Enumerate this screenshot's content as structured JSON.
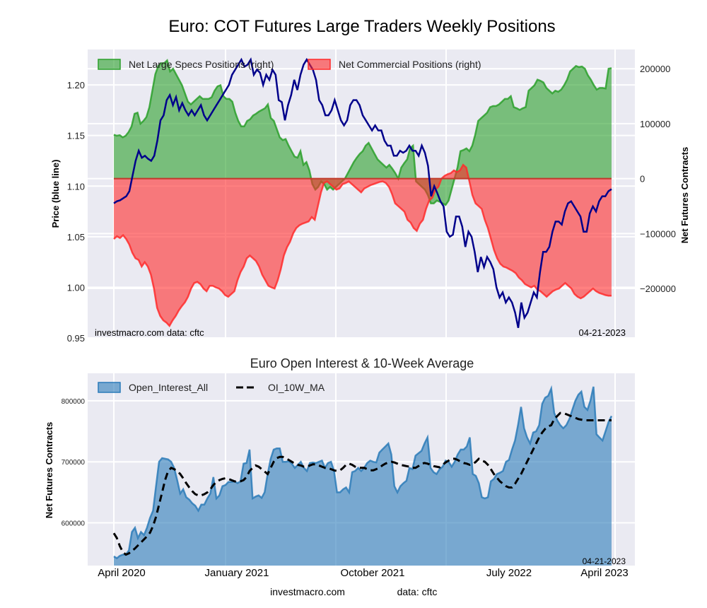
{
  "chart_data": [
    {
      "type": "area",
      "title": "Euro: COT Futures Large Traders Weekly Positions",
      "ylabel_left": "Price (blue line)",
      "ylabel_right": "Net Futures Contracts",
      "ylim_left": [
        0.95,
        1.235
      ],
      "ylim_right": [
        -290000,
        235000
      ],
      "yticks_left": [
        "0.95",
        "1.00",
        "1.05",
        "1.10",
        "1.15",
        "1.20"
      ],
      "yticks_left_values": [
        0.95,
        1.0,
        1.05,
        1.1,
        1.15,
        1.2
      ],
      "yticks_right": [
        "200000",
        "100000",
        "0",
        "−100000",
        "−200000"
      ],
      "yticks_right_values": [
        200000,
        100000,
        0,
        -100000,
        -200000
      ],
      "grid": true,
      "legend_position": "top-left",
      "annotations": {
        "left": "investmacro.com    data: cftc",
        "right": "04-21-2023"
      },
      "series": [
        {
          "name": "Net Large Specs Positions (right)",
          "kind": "area",
          "color": "#2ca02c",
          "values": [
            80000,
            78000,
            79000,
            75000,
            78000,
            85000,
            95000,
            118000,
            120000,
            100000,
            105000,
            112000,
            130000,
            160000,
            190000,
            205000,
            210000,
            210000,
            215000,
            195000,
            200000,
            190000,
            180000,
            170000,
            155000,
            140000,
            135000,
            140000,
            145000,
            150000,
            145000,
            145000,
            145000,
            148000,
            160000,
            168000,
            170000,
            150000,
            145000,
            145000,
            140000,
            120000,
            105000,
            95000,
            95000,
            105000,
            108000,
            115000,
            118000,
            122000,
            125000,
            128000,
            135000,
            110000,
            105000,
            90000,
            75000,
            70000,
            72000,
            60000,
            50000,
            40000,
            38000,
            50000,
            25000,
            30000,
            15000,
            -10000,
            -20000,
            -15000,
            -5000,
            -10000,
            -20000,
            -15000,
            -20000,
            -15000,
            -10000,
            -5000,
            0,
            10000,
            20000,
            30000,
            38000,
            45000,
            50000,
            60000,
            65000,
            55000,
            45000,
            35000,
            30000,
            25000,
            20000,
            25000,
            18000,
            10000,
            0,
            20000,
            28000,
            35000,
            55000,
            60000,
            -5000,
            -10000,
            -15000,
            -20000,
            -30000,
            -45000,
            -45000,
            -40000,
            -42000,
            -45000,
            -48000,
            -40000,
            -20000,
            0,
            20000,
            50000,
            52000,
            55000,
            50000,
            60000,
            80000,
            105000,
            110000,
            115000,
            120000,
            130000,
            132000,
            132000,
            135000,
            140000,
            145000,
            145000,
            150000,
            130000,
            128000,
            125000,
            128000,
            130000,
            160000,
            165000,
            170000,
            180000,
            178000,
            175000,
            165000,
            160000,
            155000,
            160000,
            158000,
            162000,
            170000,
            180000,
            195000,
            200000,
            205000,
            203000,
            204000,
            200000,
            188000,
            180000,
            170000,
            162000,
            165000,
            165000,
            164000,
            200000,
            201000
          ]
        },
        {
          "name": "Net Commercial Positions (right)",
          "kind": "area",
          "color": "#ff2b2b",
          "values": [
            -110000,
            -105000,
            -108000,
            -103000,
            -110000,
            -120000,
            -135000,
            -145000,
            -148000,
            -160000,
            -152000,
            -160000,
            -175000,
            -200000,
            -235000,
            -250000,
            -258000,
            -262000,
            -268000,
            -258000,
            -250000,
            -240000,
            -232000,
            -225000,
            -215000,
            -200000,
            -190000,
            -188000,
            -192000,
            -200000,
            -205000,
            -195000,
            -195000,
            -198000,
            -200000,
            -205000,
            -212000,
            -215000,
            -210000,
            -205000,
            -185000,
            -170000,
            -160000,
            -145000,
            -140000,
            -145000,
            -150000,
            -160000,
            -175000,
            -185000,
            -195000,
            -198000,
            -200000,
            -185000,
            -165000,
            -140000,
            -125000,
            -115000,
            -100000,
            -90000,
            -85000,
            -82000,
            -80000,
            -78000,
            -70000,
            -75000,
            -50000,
            -25000,
            -8000,
            -5000,
            -10000,
            -15000,
            -20000,
            -18000,
            -10000,
            -8000,
            -5000,
            -10000,
            -15000,
            -20000,
            -25000,
            -18000,
            -15000,
            -12000,
            -10000,
            -8000,
            -6000,
            -5000,
            -8000,
            -15000,
            -28000,
            -45000,
            -50000,
            -55000,
            -60000,
            -75000,
            -80000,
            -90000,
            -95000,
            -82000,
            -75000,
            -55000,
            -40000,
            -35000,
            -20000,
            -15000,
            0,
            5000,
            8000,
            10000,
            15000,
            12000,
            15000,
            25000,
            20000,
            -5000,
            -30000,
            -45000,
            -50000,
            -55000,
            -75000,
            -90000,
            -110000,
            -130000,
            -145000,
            -155000,
            -160000,
            -162000,
            -165000,
            -168000,
            -172000,
            -180000,
            -185000,
            -192000,
            -195000,
            -198000,
            -195000,
            -202000,
            -205000,
            -210000,
            -215000,
            -210000,
            -205000,
            -202000,
            -200000,
            -195000,
            -190000,
            -195000,
            -200000,
            -210000,
            -215000,
            -218000,
            -215000,
            -210000,
            -205000,
            -200000,
            -205000,
            -208000,
            -210000,
            -212000,
            -213000,
            -213000
          ]
        },
        {
          "name": "Price (blue line)",
          "kind": "line",
          "color": "#00008b",
          "axis": "left",
          "values": [
            1.083,
            1.085,
            1.086,
            1.088,
            1.09,
            1.095,
            1.11,
            1.125,
            1.135,
            1.128,
            1.13,
            1.127,
            1.125,
            1.13,
            1.145,
            1.165,
            1.17,
            1.185,
            1.19,
            1.18,
            1.188,
            1.175,
            1.182,
            1.175,
            1.17,
            1.175,
            1.17,
            1.175,
            1.18,
            1.17,
            1.165,
            1.17,
            1.175,
            1.18,
            1.185,
            1.19,
            1.195,
            1.2,
            1.21,
            1.215,
            1.22,
            1.225,
            1.218,
            1.22,
            1.225,
            1.21,
            1.215,
            1.212,
            1.2,
            1.21,
            1.205,
            1.215,
            1.21,
            1.185,
            1.183,
            1.165,
            1.18,
            1.19,
            1.205,
            1.195,
            1.21,
            1.22,
            1.225,
            1.22,
            1.215,
            1.205,
            1.185,
            1.18,
            1.17,
            1.17,
            1.175,
            1.185,
            1.175,
            1.165,
            1.16,
            1.165,
            1.18,
            1.185,
            1.185,
            1.18,
            1.17,
            1.165,
            1.16,
            1.155,
            1.16,
            1.155,
            1.155,
            1.145,
            1.14,
            1.14,
            1.13,
            1.13,
            1.135,
            1.133,
            1.135,
            1.14,
            1.135,
            1.135,
            1.13,
            1.14,
            1.133,
            1.12,
            1.09,
            1.1,
            1.093,
            1.085,
            1.08,
            1.055,
            1.05,
            1.052,
            1.07,
            1.07,
            1.06,
            1.04,
            1.055,
            1.05,
            1.035,
            1.015,
            1.03,
            1.02,
            1.03,
            1.025,
            1.018,
            1.0,
            0.99,
            0.995,
            0.985,
            0.99,
            0.985,
            0.975,
            0.96,
            0.985,
            0.97,
            0.975,
            0.985,
            0.995,
            0.99,
            1.015,
            1.035,
            1.035,
            1.04,
            1.055,
            1.065,
            1.065,
            1.062,
            1.075,
            1.083,
            1.085,
            1.08,
            1.075,
            1.07,
            1.055,
            1.055,
            1.073,
            1.08,
            1.075,
            1.085,
            1.09,
            1.09,
            1.095,
            1.097
          ]
        }
      ]
    },
    {
      "type": "area",
      "title": "Euro Open Interest & 10-Week Average",
      "ylabel": "Net Futures Contracts",
      "ylim": [
        530000,
        845000
      ],
      "yticks": [
        "600000",
        "700000",
        "800000"
      ],
      "yticks_values": [
        600000,
        700000,
        800000
      ],
      "xticks": [
        "April 2020",
        "January 2021",
        "October 2021",
        "July 2022",
        "April 2023"
      ],
      "grid": true,
      "legend_position": "top-left",
      "annotations": {
        "right": "04-21-2023"
      },
      "series": [
        {
          "name": "Open_Interest_All",
          "kind": "area",
          "color": "#2b7bb9",
          "values": [
            545000,
            542000,
            546000,
            548000,
            548000,
            555000,
            585000,
            592000,
            575000,
            585000,
            580000,
            592000,
            608000,
            620000,
            660000,
            700000,
            706000,
            705000,
            704000,
            700000,
            690000,
            670000,
            648000,
            655000,
            642000,
            638000,
            632000,
            628000,
            620000,
            630000,
            630000,
            640000,
            648000,
            675000,
            640000,
            645000,
            660000,
            662000,
            667000,
            667000,
            668000,
            665000,
            668000,
            697000,
            698000,
            720000,
            640000,
            643000,
            645000,
            641000,
            650000,
            680000,
            705000,
            720000,
            722000,
            722000,
            700000,
            700000,
            701000,
            697000,
            690000,
            695000,
            700000,
            690000,
            685000,
            698000,
            699000,
            698000,
            700000,
            702000,
            690000,
            698000,
            700000,
            685000,
            650000,
            650000,
            655000,
            658000,
            650000,
            683000,
            685000,
            690000,
            685000,
            690000,
            698000,
            702000,
            700000,
            699000,
            715000,
            720000,
            725000,
            730000,
            712000,
            660000,
            650000,
            660000,
            665000,
            669000,
            690000,
            688000,
            710000,
            714000,
            718000,
            730000,
            740000,
            690000,
            683000,
            680000,
            688000,
            692000,
            702000,
            700000,
            692000,
            700000,
            712000,
            720000,
            720000,
            725000,
            740000,
            680000,
            677000,
            665000,
            642000,
            640000,
            642000,
            668000,
            672000,
            680000,
            682000,
            685000,
            700000,
            703000,
            720000,
            735000,
            760000,
            790000,
            755000,
            740000,
            730000,
            748000,
            750000,
            760000,
            795000,
            805000,
            808000,
            820000,
            780000,
            768000,
            760000,
            755000,
            760000,
            770000,
            785000,
            800000,
            810000,
            815000,
            790000,
            785000,
            800000,
            823000,
            745000,
            740000,
            735000,
            750000,
            765000,
            775000
          ]
        },
        {
          "name": "OI_10W_MA",
          "kind": "line",
          "color": "#000000",
          "dashed": true,
          "values": [
            583000,
            575000,
            562000,
            552000,
            548000,
            550000,
            554000,
            558000,
            563000,
            568000,
            573000,
            578000,
            584000,
            595000,
            610000,
            630000,
            650000,
            670000,
            685000,
            690000,
            688000,
            685000,
            680000,
            673000,
            665000,
            658000,
            652000,
            647000,
            645000,
            645000,
            647000,
            650000,
            655000,
            662000,
            667000,
            670000,
            672000,
            673000,
            672000,
            670000,
            668000,
            667000,
            668000,
            670000,
            675000,
            685000,
            690000,
            694000,
            692000,
            688000,
            684000,
            680000,
            690000,
            700000,
            706000,
            708000,
            708000,
            706000,
            703000,
            700000,
            697000,
            695000,
            694000,
            692000,
            692000,
            694000,
            696000,
            696000,
            694000,
            692000,
            690000,
            690000,
            688000,
            686000,
            685000,
            686000,
            690000,
            695000,
            697000,
            695000,
            692000,
            690000,
            690000,
            690000,
            688000,
            686000,
            686000,
            688000,
            690000,
            694000,
            697000,
            699000,
            700000,
            699000,
            697000,
            695000,
            694000,
            693000,
            692000,
            690000,
            690000,
            693000,
            697000,
            698000,
            697000,
            695000,
            693000,
            692000,
            691000,
            695000,
            699000,
            702000,
            705000,
            705000,
            703000,
            700000,
            698000,
            697000,
            695000,
            696000,
            700000,
            705000,
            702000,
            700000,
            695000,
            688000,
            680000,
            674000,
            668000,
            664000,
            660000,
            658000,
            658000,
            664000,
            672000,
            680000,
            690000,
            700000,
            710000,
            720000,
            730000,
            740000,
            748000,
            754000,
            758000,
            760000,
            770000,
            775000,
            780000,
            780000,
            778000,
            776000,
            774000,
            772000,
            770000,
            769000,
            768000,
            768000,
            768000,
            768000,
            768000,
            768000,
            768000,
            768000,
            768000,
            768000
          ]
        }
      ]
    }
  ],
  "legend_top": [
    "Net Large Specs Positions (right)",
    "Net Commercial Positions (right)"
  ],
  "legend_bottom": [
    "Open_Interest_All",
    "OI_10W_MA"
  ],
  "footer": {
    "site": "investmacro.com",
    "source": "data: cftc"
  }
}
